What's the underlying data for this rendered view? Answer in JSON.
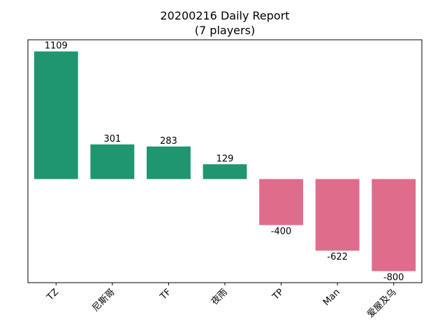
{
  "chart_data": {
    "type": "bar",
    "title": "20200216 Daily Report",
    "subtitle": "(7 players)",
    "xlabel": "",
    "ylabel": "",
    "categories": [
      "TZ",
      "尼斯哥",
      "TF",
      "夜雨",
      "TP",
      "Man",
      "爱屋及乌"
    ],
    "values": [
      1109,
      301,
      283,
      129,
      -400,
      -622,
      -800
    ],
    "ylim": [
      -900,
      1210
    ],
    "grid": false,
    "y_ticks_visible": false,
    "colors": {
      "positive": "#1f9670",
      "negative": "#e06c8c"
    }
  }
}
